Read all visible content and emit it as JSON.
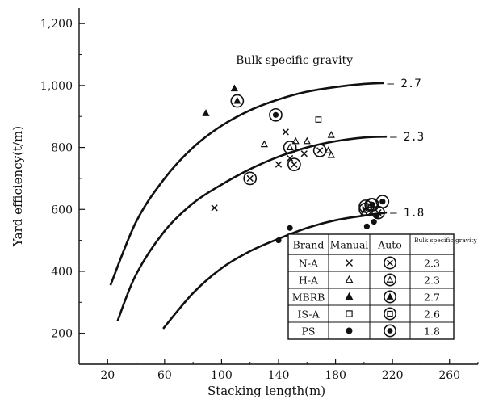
{
  "chart_data": {
    "type": "scatter",
    "xlabel": "Stacking length(m)",
    "ylabel": "Yard efficiency(t/m)",
    "xlim": [
      0,
      280
    ],
    "ylim": [
      100,
      1250
    ],
    "xticks": [
      20,
      60,
      100,
      140,
      180,
      220,
      260
    ],
    "yticks": [
      200,
      400,
      600,
      800,
      1000,
      1200
    ],
    "ytick_labels": [
      "200",
      "400",
      "600",
      "800",
      "1,000",
      "1,200"
    ],
    "grid": false,
    "annotation": "Bulk specific gravity",
    "curves": [
      {
        "label": "2.7",
        "x": [
          22,
          40,
          60,
          80,
          100,
          120,
          140,
          160,
          180,
          200,
          214
        ],
        "y": [
          355,
          560,
          700,
          800,
          870,
          920,
          955,
          980,
          995,
          1005,
          1008
        ]
      },
      {
        "label": "2.3",
        "x": [
          27,
          40,
          60,
          80,
          100,
          120,
          140,
          160,
          180,
          200,
          216
        ],
        "y": [
          240,
          390,
          530,
          620,
          680,
          730,
          770,
          800,
          820,
          832,
          835
        ]
      },
      {
        "label": "1.8",
        "x": [
          59,
          80,
          100,
          120,
          140,
          160,
          180,
          200,
          216
        ],
        "y": [
          215,
          330,
          410,
          465,
          505,
          540,
          565,
          580,
          590
        ]
      }
    ],
    "series": [
      {
        "brand": "N-A",
        "mode": "Manual",
        "marker": "x",
        "points": [
          [
            95,
            605
          ],
          [
            140,
            745
          ],
          [
            145,
            850
          ],
          [
            158,
            780
          ],
          [
            148,
            765
          ]
        ]
      },
      {
        "brand": "N-A",
        "mode": "Auto",
        "marker": "circled-x",
        "points": [
          [
            120,
            700
          ],
          [
            151,
            745
          ],
          [
            169,
            790
          ],
          [
            201,
            600
          ],
          [
            210,
            590
          ]
        ]
      },
      {
        "brand": "H-A",
        "mode": "Manual",
        "marker": "triangle",
        "points": [
          [
            130,
            810
          ],
          [
            152,
            820
          ],
          [
            160,
            820
          ],
          [
            177,
            840
          ],
          [
            177,
            775
          ],
          [
            175,
            790
          ],
          [
            200,
            590
          ]
        ]
      },
      {
        "brand": "H-A",
        "mode": "Auto",
        "marker": "circled-triangle",
        "points": [
          [
            148,
            800
          ],
          [
            205,
            615
          ]
        ]
      },
      {
        "brand": "MBRB",
        "mode": "Manual",
        "marker": "filled-triangle",
        "points": [
          [
            89,
            910
          ],
          [
            109,
            990
          ]
        ]
      },
      {
        "brand": "MBRB",
        "mode": "Auto",
        "marker": "circled-filled-triangle",
        "points": [
          [
            111,
            950
          ]
        ]
      },
      {
        "brand": "IS-A",
        "mode": "Manual",
        "marker": "square",
        "points": [
          [
            168,
            890
          ]
        ]
      },
      {
        "brand": "IS-A",
        "mode": "Auto",
        "marker": "circled-square",
        "points": [
          [
            201,
            610
          ]
        ]
      },
      {
        "brand": "PS",
        "mode": "Manual",
        "marker": "filled-circle",
        "points": [
          [
            140,
            500
          ],
          [
            148,
            540
          ],
          [
            202,
            545
          ],
          [
            207,
            560
          ],
          [
            209,
            580
          ]
        ]
      },
      {
        "brand": "PS",
        "mode": "Auto",
        "marker": "circled-filled-circle",
        "points": [
          [
            138,
            905
          ],
          [
            213,
            625
          ],
          [
            206,
            615
          ]
        ]
      }
    ],
    "legend": {
      "position": "bottom-right",
      "headers": [
        "Brand",
        "Manual",
        "Auto",
        "Bulk specific gravity"
      ],
      "rows": [
        {
          "brand": "N-A",
          "manual_marker": "x",
          "auto_marker": "circled-x",
          "gravity": "2.3"
        },
        {
          "brand": "H-A",
          "manual_marker": "triangle",
          "auto_marker": "circled-triangle",
          "gravity": "2.3"
        },
        {
          "brand": "MBRB",
          "manual_marker": "filled-triangle",
          "auto_marker": "circled-filled-triangle",
          "gravity": "2.7"
        },
        {
          "brand": "IS-A",
          "manual_marker": "square",
          "auto_marker": "circled-square",
          "gravity": "2.6"
        },
        {
          "brand": "PS",
          "manual_marker": "filled-circle",
          "auto_marker": "circled-filled-circle",
          "gravity": "1.8"
        }
      ]
    }
  }
}
